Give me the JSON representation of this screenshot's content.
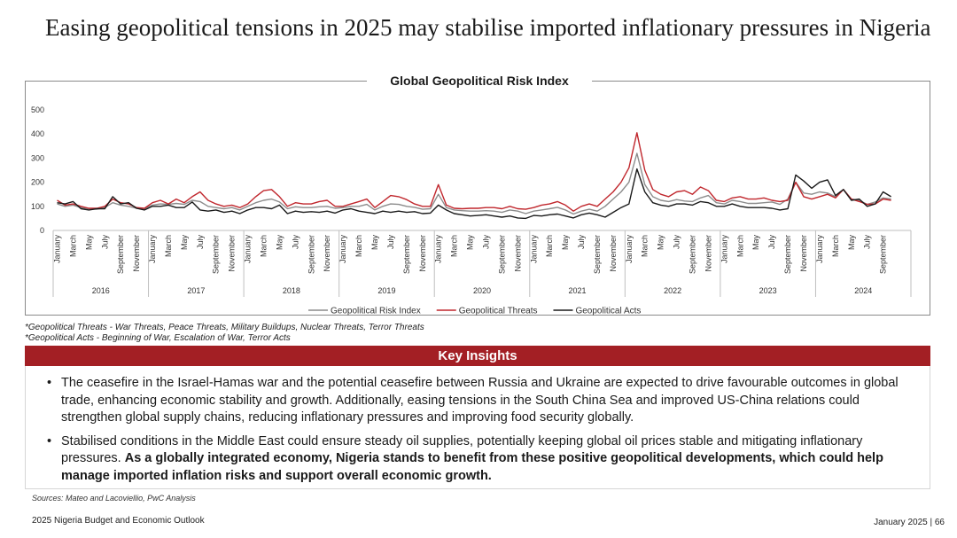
{
  "page": {
    "title": "Easing geopolitical tensions in 2025 may stabilise imported inflationary pressures in Nigeria",
    "notes": {
      "threats_label": "*Geopolitical Threats -",
      "threats_text": " War Threats, Peace Threats, Military Buildups, Nuclear Threats, Terror Threats",
      "acts_text": "*Geopolitical Acts - Beginning of War, Escalation of War, Terror Acts"
    },
    "insights": {
      "heading": "Key Insights",
      "bullet1": "The ceasefire in the Israel-Hamas war and the potential ceasefire between Russia and Ukraine are expected to drive favourable outcomes in global trade, enhancing economic stability and growth. Additionally, easing tensions in the South China Sea and improved US-China relations could strengthen global supply chains, reducing inflationary pressures and improving food security globally.",
      "bullet2_plain": "Stabilised conditions in the Middle East could ensure steady oil supplies, potentially keeping global oil prices stable and mitigating inflationary pressures. ",
      "bullet2_bold": "As a globally integrated economy, Nigeria stands to benefit from these positive geopolitical developments, which could help manage imported inflation risks and support overall economic growth."
    },
    "sources": "Sources: Mateo and Lacoviellio, PwC Analysis",
    "footer_left": "2025 Nigeria Budget and Economic Outlook",
    "footer_right": "January 2025 | 66"
  },
  "chart_data": {
    "type": "line",
    "title": "Global Geopolitical Risk Index",
    "ylim": [
      0,
      500
    ],
    "yticks": [
      0,
      100,
      200,
      300,
      400,
      500
    ],
    "years": [
      "2016",
      "2017",
      "2018",
      "2019",
      "2020",
      "2021",
      "2022",
      "2023",
      "2024"
    ],
    "month_labels": [
      "January",
      "March",
      "May",
      "July",
      "September",
      "November"
    ],
    "month_labels_2024": [
      "January",
      "March",
      "May",
      "July",
      "September"
    ],
    "months_total": 108,
    "series": [
      {
        "name": "Geopolitical Risk Index",
        "color": "#8c8c8c",
        "values": [
          110,
          100,
          105,
          95,
          90,
          88,
          95,
          115,
          105,
          100,
          92,
          90,
          105,
          110,
          108,
          112,
          108,
          125,
          120,
          100,
          95,
          90,
          95,
          85,
          100,
          115,
          125,
          130,
          118,
          90,
          98,
          95,
          95,
          98,
          100,
          92,
          95,
          100,
          100,
          108,
          85,
          100,
          110,
          108,
          100,
          96,
          88,
          90,
          150,
          95,
          85,
          82,
          80,
          80,
          82,
          80,
          75,
          85,
          80,
          70,
          80,
          85,
          90,
          96,
          85,
          68,
          80,
          88,
          80,
          100,
          130,
          160,
          200,
          320,
          190,
          140,
          125,
          120,
          128,
          122,
          120,
          135,
          145,
          115,
          110,
          125,
          120,
          112,
          112,
          115,
          118,
          108,
          130,
          200,
          155,
          150,
          160,
          155,
          140,
          170,
          130,
          125,
          108,
          118,
          135,
          130
        ]
      },
      {
        "name": "Geopolitical Threats",
        "color": "#c0272d",
        "values": [
          125,
          105,
          110,
          100,
          92,
          92,
          100,
          130,
          115,
          110,
          95,
          92,
          115,
          125,
          110,
          130,
          115,
          140,
          160,
          125,
          110,
          100,
          105,
          95,
          110,
          140,
          165,
          170,
          140,
          100,
          115,
          110,
          110,
          120,
          125,
          100,
          100,
          110,
          120,
          130,
          95,
          120,
          145,
          140,
          128,
          110,
          100,
          100,
          190,
          105,
          92,
          90,
          92,
          92,
          95,
          95,
          90,
          100,
          90,
          88,
          95,
          105,
          110,
          120,
          105,
          80,
          100,
          110,
          100,
          130,
          160,
          200,
          260,
          405,
          250,
          170,
          150,
          140,
          160,
          165,
          150,
          180,
          165,
          125,
          120,
          135,
          140,
          130,
          130,
          135,
          125,
          120,
          125,
          200,
          140,
          130,
          140,
          150,
          135,
          170,
          130,
          120,
          108,
          110,
          130,
          125
        ]
      },
      {
        "name": "Geopolitical Acts",
        "color": "#1a1a1a",
        "values": [
          115,
          110,
          120,
          90,
          85,
          90,
          90,
          140,
          110,
          115,
          92,
          85,
          100,
          100,
          105,
          95,
          95,
          118,
          85,
          80,
          85,
          75,
          80,
          70,
          85,
          95,
          95,
          90,
          105,
          70,
          80,
          75,
          78,
          75,
          80,
          72,
          85,
          90,
          80,
          75,
          70,
          80,
          75,
          80,
          75,
          78,
          70,
          72,
          105,
          85,
          70,
          65,
          60,
          62,
          65,
          60,
          55,
          60,
          52,
          50,
          62,
          60,
          65,
          68,
          60,
          52,
          65,
          72,
          65,
          55,
          75,
          95,
          110,
          255,
          160,
          115,
          105,
          100,
          110,
          110,
          105,
          120,
          115,
          100,
          100,
          110,
          100,
          95,
          95,
          95,
          92,
          85,
          90,
          230,
          205,
          175,
          200,
          210,
          145,
          170,
          125,
          130,
          100,
          110,
          160,
          140
        ]
      }
    ]
  }
}
